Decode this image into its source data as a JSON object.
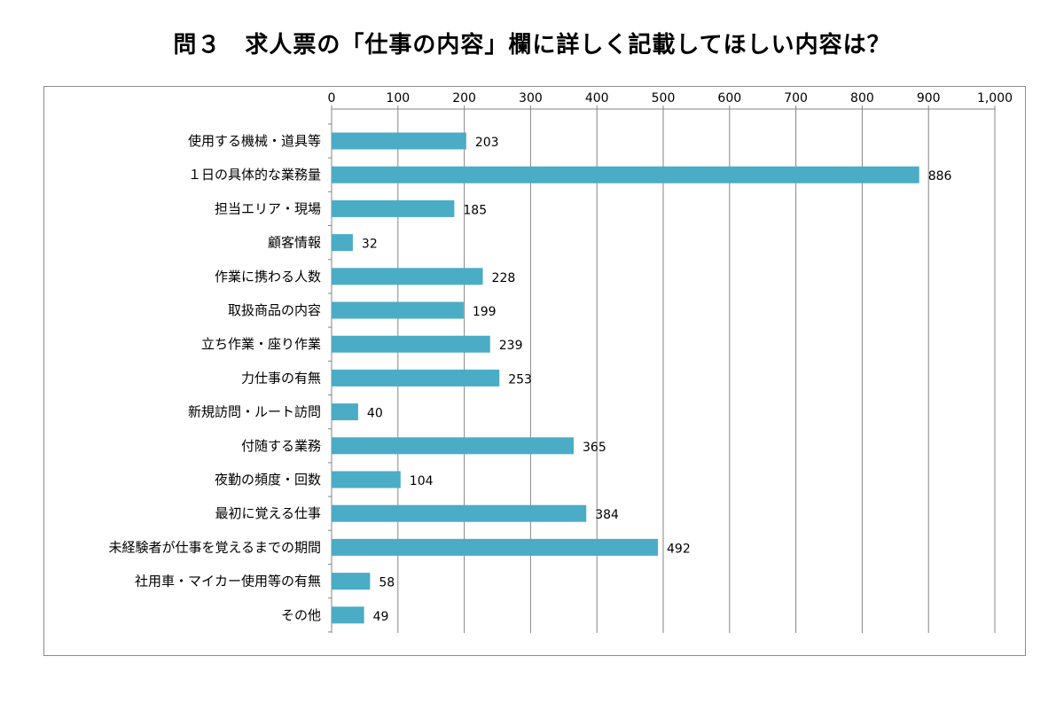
{
  "page": {
    "title": "問３　求人票の「仕事の内容」欄に詳しく記載してほしい内容は？"
  },
  "colors": {
    "bar": "#4bacc6",
    "grid": "#868686",
    "frame": "#8c8c8c"
  },
  "chart_data": {
    "type": "bar",
    "orientation": "horizontal",
    "title": "問３　求人票の「仕事の内容」欄に詳しく記載してほしい内容は？",
    "xlabel": "",
    "ylabel": "",
    "xlim": [
      0,
      1000
    ],
    "x_ticks": [
      0,
      100,
      200,
      300,
      400,
      500,
      600,
      700,
      800,
      900,
      1000
    ],
    "x_tick_labels": [
      "0",
      "100",
      "200",
      "300",
      "400",
      "500",
      "600",
      "700",
      "800",
      "900",
      "1,000"
    ],
    "x_axis_position": "top",
    "grid": true,
    "legend": "none",
    "categories": [
      "使用する機械・道具等",
      "１日の具体的な業務量",
      "担当エリア・現場",
      "顧客情報",
      "作業に携わる人数",
      "取扱商品の内容",
      "立ち作業・座り作業",
      "力仕事の有無",
      "新規訪問・ルート訪問",
      "付随する業務",
      "夜勤の頻度・回数",
      "最初に覚える仕事",
      "未経験者が仕事を覚えるまでの期間",
      "社用車・マイカー使用等の有無",
      "その他"
    ],
    "values": [
      203,
      886,
      185,
      32,
      228,
      199,
      239,
      253,
      40,
      365,
      104,
      384,
      492,
      58,
      49
    ],
    "value_labels": [
      "203",
      "886",
      "185",
      "32",
      "228",
      "199",
      "239",
      "253",
      "40",
      "365",
      "104",
      "384",
      "492",
      "58",
      "49"
    ]
  }
}
